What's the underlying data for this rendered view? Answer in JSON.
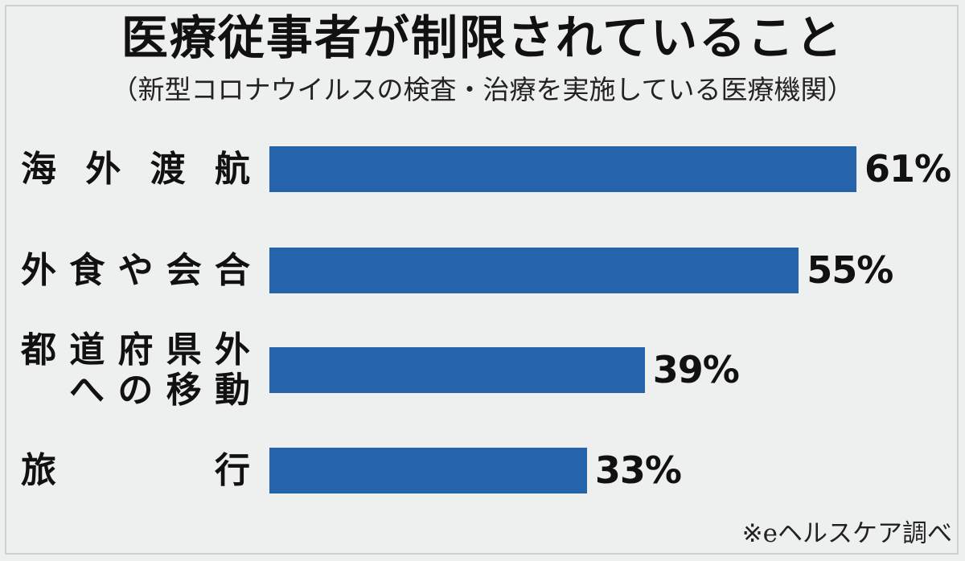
{
  "chart_data": {
    "type": "bar",
    "orientation": "horizontal",
    "title": "医療従事者が制限されていること",
    "subtitle": "（新型コロナウイルスの検査・治療を実施している医療機関）",
    "categories": [
      "海外渡航",
      "外食や会合",
      "都道府県外への移動",
      "旅行"
    ],
    "category_lines": [
      [
        "海外渡航"
      ],
      [
        "外食や会合"
      ],
      [
        "都道府県外",
        "への移動"
      ],
      [
        "旅行"
      ]
    ],
    "values": [
      61,
      55,
      39,
      33
    ],
    "value_labels": [
      "61%",
      "55%",
      "39%",
      "33%"
    ],
    "unit": "%",
    "xlim": [
      0,
      61
    ],
    "grid": false,
    "legend": "none",
    "bar_color": "#2563ab",
    "source": "※eヘルスケア調べ"
  }
}
